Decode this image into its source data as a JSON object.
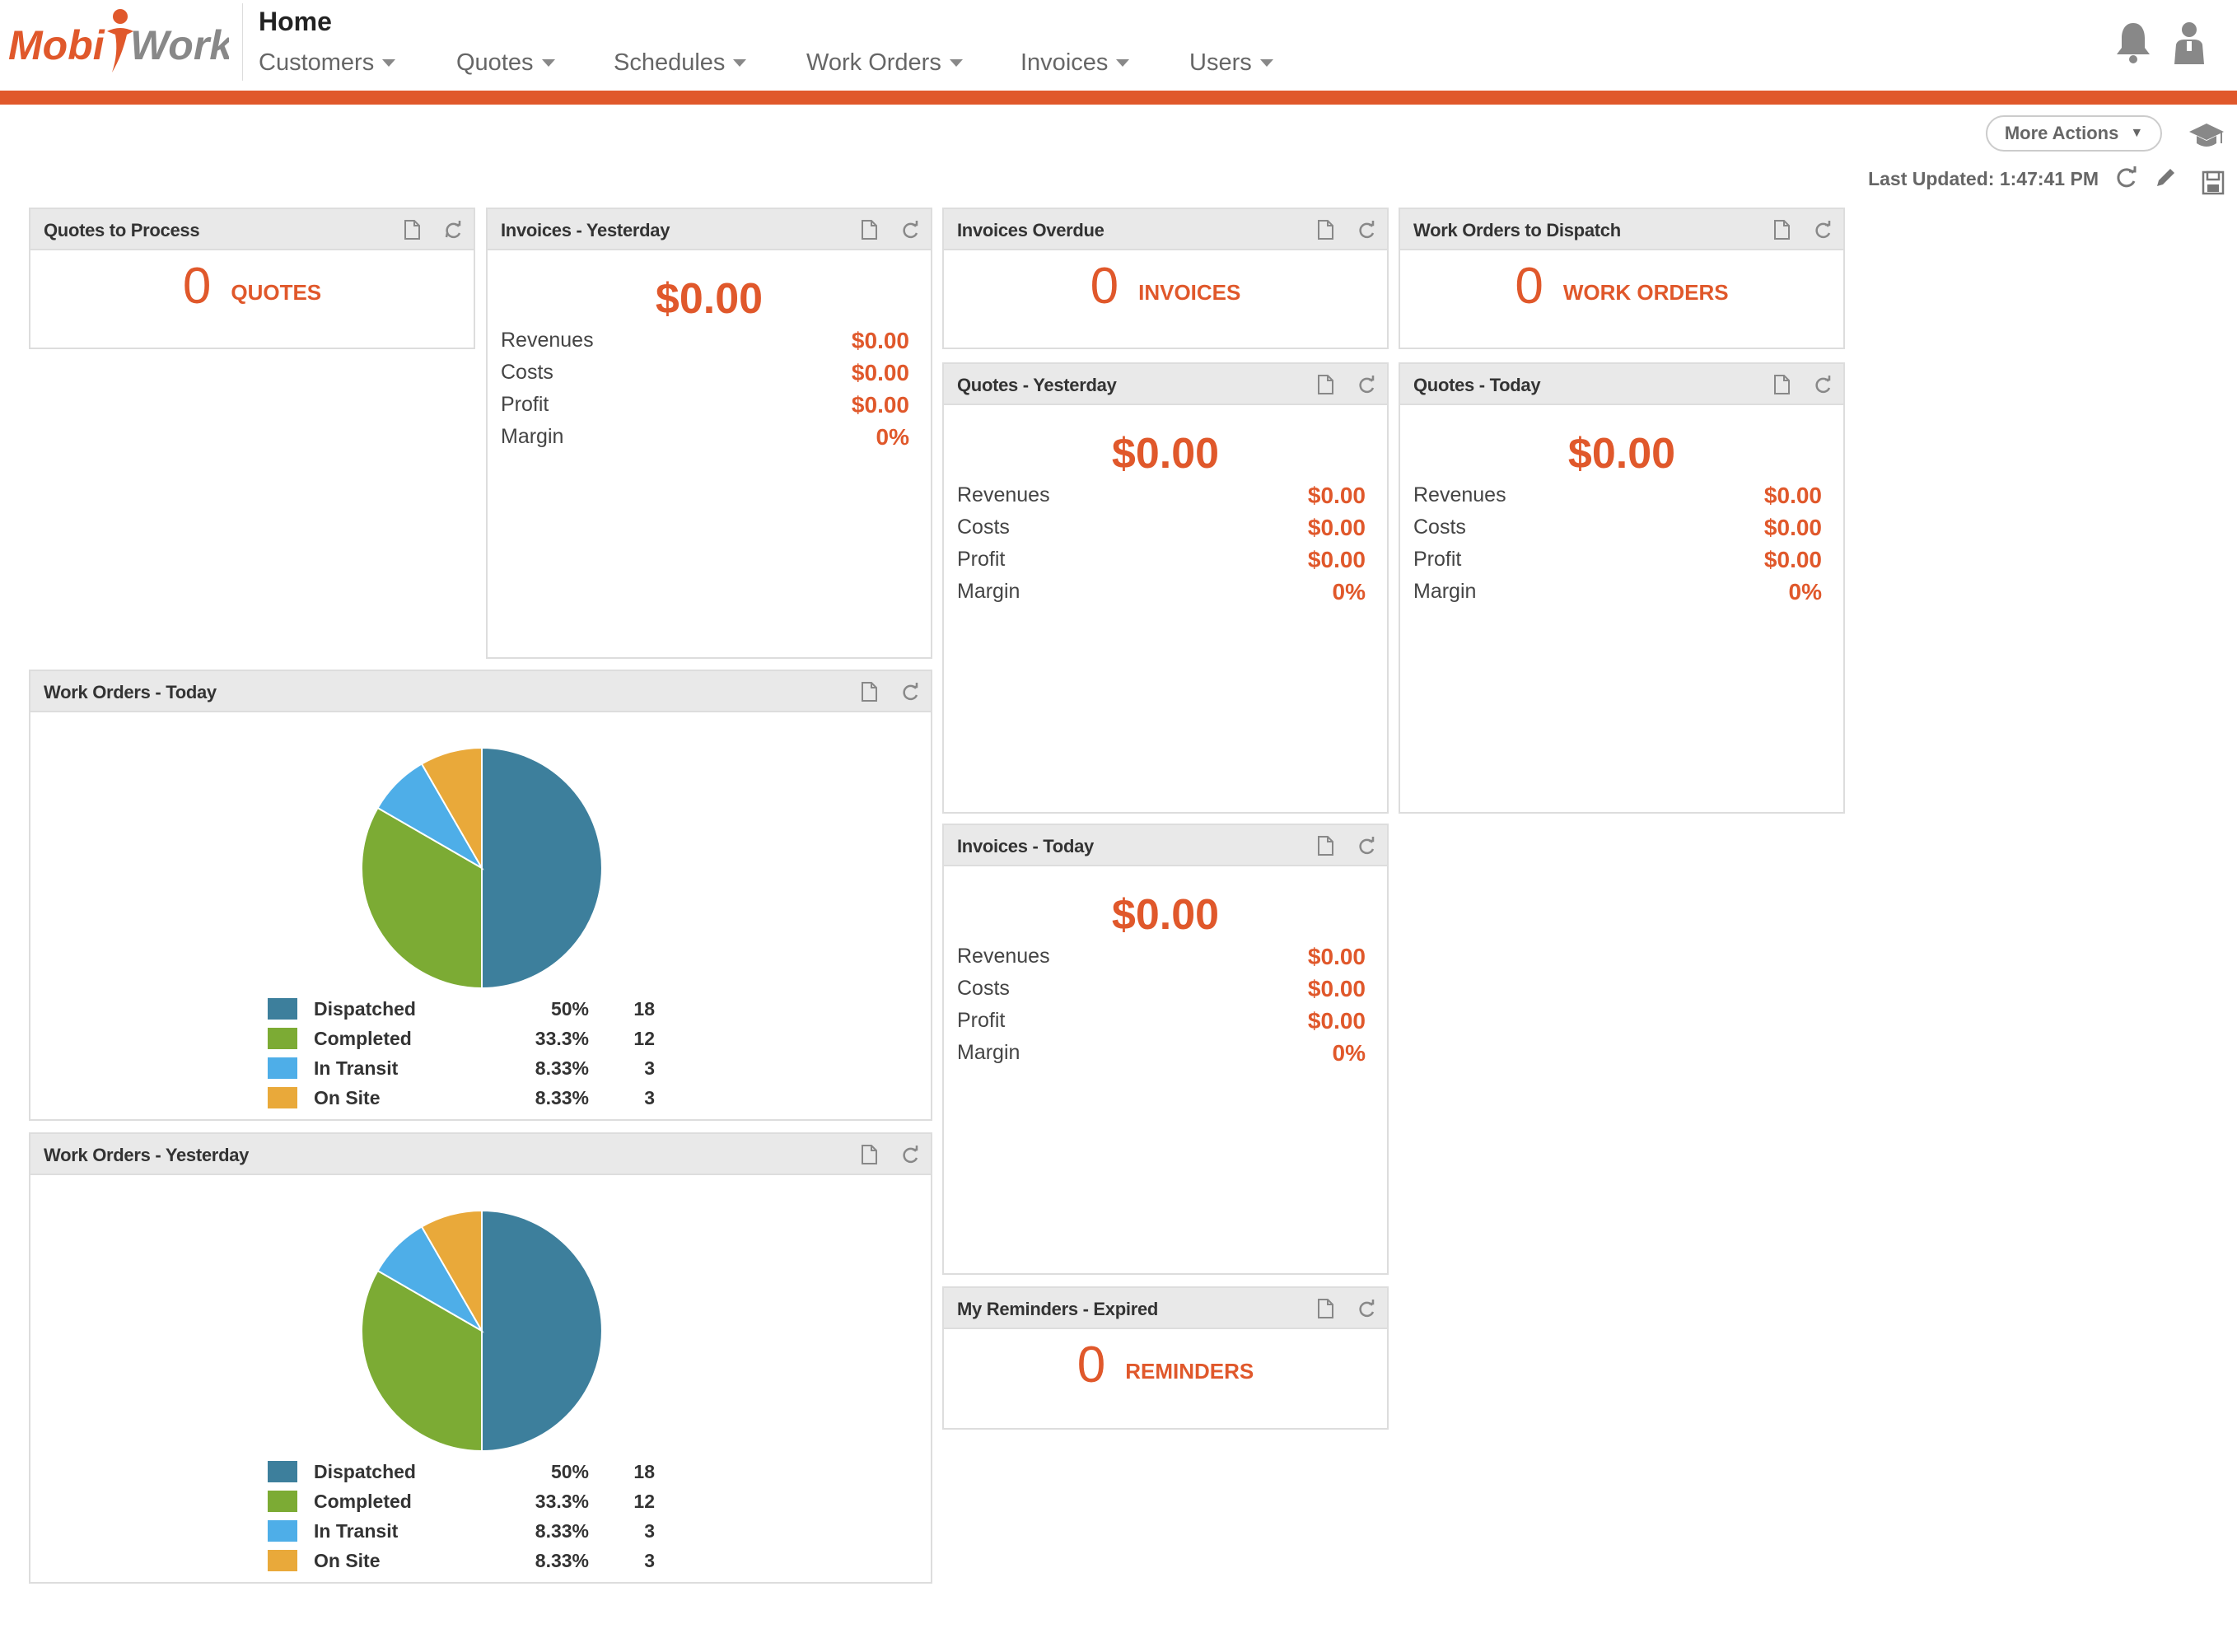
{
  "brand": {
    "logo_left": "Mobi",
    "logo_right": "Work",
    "accent": "#e0582b"
  },
  "header": {
    "title": "Home",
    "nav": [
      "Customers",
      "Quotes",
      "Schedules",
      "Work Orders",
      "Invoices",
      "Users"
    ],
    "icons": [
      "bell-icon",
      "user-icon"
    ]
  },
  "toolbar": {
    "more_actions": "More Actions",
    "last_updated": "Last Updated: 1:47:41 PM",
    "icons": [
      "graduation-cap-icon",
      "refresh-icon",
      "pencil-icon",
      "save-icon"
    ]
  },
  "widgets": {
    "quotes_to_process": {
      "title": "Quotes to Process",
      "value": "0",
      "unit": "QUOTES"
    },
    "invoices_yesterday": {
      "title": "Invoices - Yesterday",
      "amount": "$0.00",
      "rows": [
        {
          "label": "Revenues",
          "value": "$0.00"
        },
        {
          "label": "Costs",
          "value": "$0.00"
        },
        {
          "label": "Profit",
          "value": "$0.00"
        },
        {
          "label": "Margin",
          "value": "0%"
        }
      ]
    },
    "invoices_overdue": {
      "title": "Invoices Overdue",
      "value": "0",
      "unit": "INVOICES"
    },
    "work_orders_to_dispatch": {
      "title": "Work Orders to Dispatch",
      "value": "0",
      "unit": "WORK ORDERS"
    },
    "quotes_yesterday": {
      "title": "Quotes - Yesterday",
      "amount": "$0.00",
      "rows": [
        {
          "label": "Revenues",
          "value": "$0.00"
        },
        {
          "label": "Costs",
          "value": "$0.00"
        },
        {
          "label": "Profit",
          "value": "$0.00"
        },
        {
          "label": "Margin",
          "value": "0%"
        }
      ]
    },
    "quotes_today": {
      "title": "Quotes - Today",
      "amount": "$0.00",
      "rows": [
        {
          "label": "Revenues",
          "value": "$0.00"
        },
        {
          "label": "Costs",
          "value": "$0.00"
        },
        {
          "label": "Profit",
          "value": "$0.00"
        },
        {
          "label": "Margin",
          "value": "0%"
        }
      ]
    },
    "invoices_today": {
      "title": "Invoices - Today",
      "amount": "$0.00",
      "rows": [
        {
          "label": "Revenues",
          "value": "$0.00"
        },
        {
          "label": "Costs",
          "value": "$0.00"
        },
        {
          "label": "Profit",
          "value": "$0.00"
        },
        {
          "label": "Margin",
          "value": "0%"
        }
      ]
    },
    "reminders_expired": {
      "title": "My Reminders - Expired",
      "value": "0",
      "unit": "REMINDERS"
    },
    "wo_today": {
      "title": "Work Orders - Today"
    },
    "wo_yesterday": {
      "title": "Work Orders - Yesterday"
    }
  },
  "chart_data": [
    {
      "type": "pie",
      "title": "Work Orders - Today",
      "categories": [
        "Dispatched",
        "Completed",
        "In Transit",
        "On Site"
      ],
      "values": [
        18,
        12,
        3,
        3
      ],
      "percent_labels": [
        "50%",
        "33.3%",
        "8.33%",
        "8.33%"
      ],
      "colors": [
        "#3d7f9c",
        "#7cab34",
        "#4eaee8",
        "#e9a93a"
      ],
      "legend": "bottom"
    },
    {
      "type": "pie",
      "title": "Work Orders - Yesterday",
      "categories": [
        "Dispatched",
        "Completed",
        "In Transit",
        "On Site"
      ],
      "values": [
        18,
        12,
        3,
        3
      ],
      "percent_labels": [
        "50%",
        "33.3%",
        "8.33%",
        "8.33%"
      ],
      "colors": [
        "#3d7f9c",
        "#7cab34",
        "#4eaee8",
        "#e9a93a"
      ],
      "legend": "bottom"
    }
  ]
}
